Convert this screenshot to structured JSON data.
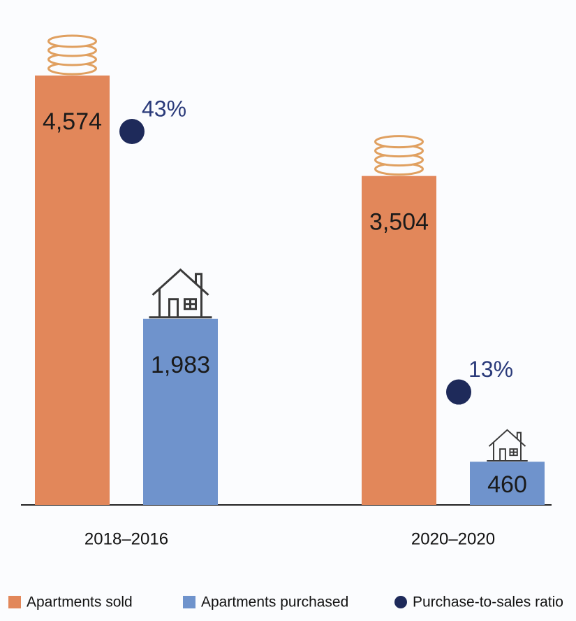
{
  "chart_data": {
    "type": "bar",
    "categories": [
      "2018–2016",
      "2020–2020"
    ],
    "series": [
      {
        "name": "Apartments sold",
        "color": "#e2875a",
        "values": [
          4574,
          3504
        ],
        "value_labels": [
          "4,574",
          "3,504"
        ]
      },
      {
        "name": "Apartments purchased",
        "color": "#6f93cc",
        "values": [
          1983,
          460
        ],
        "value_labels": [
          "1,983",
          "460"
        ]
      },
      {
        "name": "Purchase-to-sales ratio",
        "color": "#1e2a5a",
        "values": [
          43,
          13
        ],
        "value_labels": [
          "43%",
          "13%"
        ]
      }
    ]
  }
}
